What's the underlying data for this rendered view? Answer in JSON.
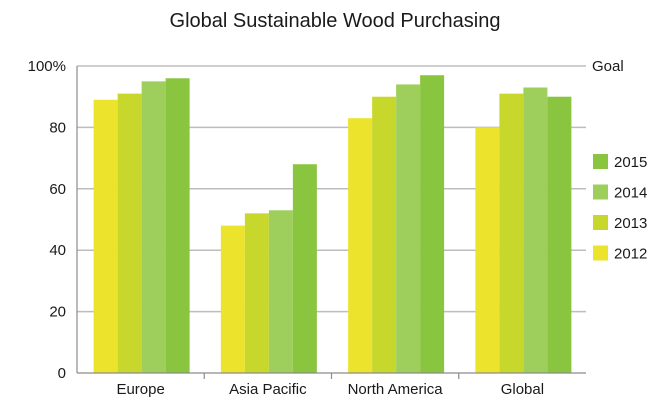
{
  "chart_data": {
    "type": "bar",
    "title": "Global Sustainable Wood Purchasing",
    "xlabel": "",
    "ylabel": "",
    "ylim": [
      0,
      100
    ],
    "yticks": [
      "0",
      "20",
      "40",
      "60",
      "80",
      "100%"
    ],
    "categories": [
      "Europe",
      "Asia Pacific",
      "North America",
      "Global"
    ],
    "series": [
      {
        "name": "2012",
        "color": "#ebe32c",
        "values": [
          89,
          48,
          83,
          80
        ]
      },
      {
        "name": "2013",
        "color": "#c7d72c",
        "values": [
          91,
          52,
          90,
          91
        ]
      },
      {
        "name": "2014",
        "color": "#9ecf5c",
        "values": [
          95,
          53,
          94,
          93
        ]
      },
      {
        "name": "2015",
        "color": "#89c53e",
        "values": [
          96,
          68,
          97,
          90
        ]
      }
    ],
    "goal": {
      "label": "Goal",
      "value": 100
    },
    "grid": true,
    "legend_position": "right"
  }
}
